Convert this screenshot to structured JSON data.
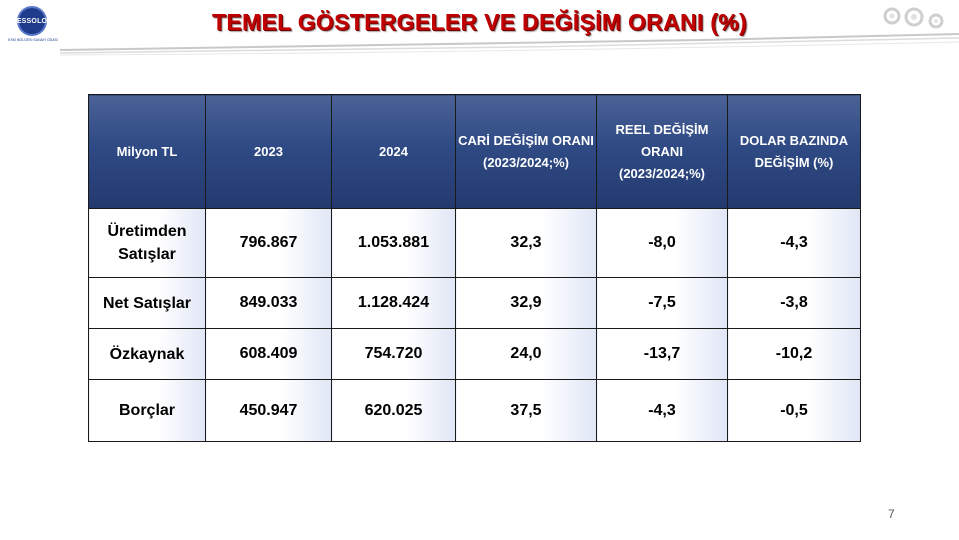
{
  "title": "TEMEL GÖSTERGELER VE DEĞİŞİM ORANI (%)",
  "logo": {
    "text": "ESSOLO",
    "subtext": "ESKİ BÖLGESİ SANAYİ ODASI"
  },
  "table": {
    "headers": [
      "Milyon TL",
      "2023",
      "2024",
      "CARİ DEĞİŞİM ORANI (2023/2024;%)",
      "REEL DEĞİŞİM ORANI (2023/2024;%)",
      "DOLAR BAZINDA DEĞİŞİM (%)"
    ],
    "rows": [
      [
        "Üretimden Satışlar",
        "796.867",
        "1.053.881",
        "32,3",
        "-8,0",
        "-4,3"
      ],
      [
        "Net Satışlar",
        "849.033",
        "1.128.424",
        "32,9",
        "-7,5",
        "-3,8"
      ],
      [
        "Özkaynak",
        "608.409",
        "754.720",
        "24,0",
        "-13,7",
        "-10,2"
      ],
      [
        "Borçlar",
        "450.947",
        "620.025",
        "37,5",
        "-4,3",
        "-0,5"
      ]
    ]
  },
  "page_number": "7",
  "colors": {
    "title": "#c00000",
    "header_bg": "#2f4a84",
    "header_text": "#ffffff"
  }
}
